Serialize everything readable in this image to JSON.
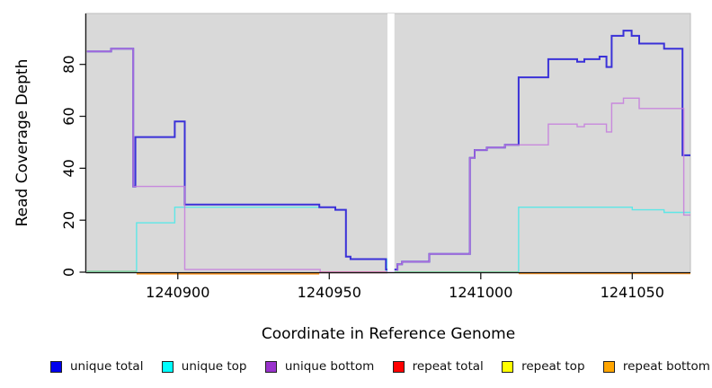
{
  "figure": {
    "background": "#ffffff",
    "panel_background": "#d9d9d9",
    "panel_border": "#bdbdbd",
    "axis_color": "#1a1a1a"
  },
  "chart_data": {
    "type": "line",
    "style": "step-after",
    "title": "",
    "xlabel": "Coordinate in Reference Genome",
    "ylabel": "Read Coverage Depth",
    "xlim": [
      1240869.8,
      1241069.2
    ],
    "ylim": [
      0,
      99.6
    ],
    "grid": "off",
    "legend_position": "bottom",
    "xticks": [
      {
        "value": 1240900,
        "label": "1240900"
      },
      {
        "value": 1240950,
        "label": "1240950"
      },
      {
        "value": 1241000,
        "label": "1241000"
      },
      {
        "value": 1241050,
        "label": "1241050"
      }
    ],
    "yticks": [
      {
        "value": 0,
        "label": "0"
      },
      {
        "value": 20,
        "label": "20"
      },
      {
        "value": 40,
        "label": "40"
      },
      {
        "value": 60,
        "label": "60"
      },
      {
        "value": 80,
        "label": "80"
      }
    ],
    "gap_band": {
      "x0": 1240969.2,
      "x1": 1240971.5,
      "color": "#ffffff",
      "note": "white vertical band with no data"
    },
    "series": [
      {
        "name": "unique top",
        "color": "#5ee7e7",
        "width": 1.4,
        "opacity": 1,
        "draw": true,
        "points": [
          [
            1240870,
            0
          ],
          [
            1240886.4,
            19
          ],
          [
            1240899,
            25
          ],
          [
            1240952,
            24
          ],
          [
            1240955.5,
            6
          ],
          [
            1240957,
            5
          ],
          [
            1240969,
            0
          ],
          [
            1241012.5,
            25
          ],
          [
            1241050,
            24
          ],
          [
            1241060.5,
            23
          ]
        ]
      },
      {
        "name": "unique total",
        "color": "#3a31d8",
        "width": 2,
        "opacity": 1,
        "draw": true,
        "points": [
          [
            1240870,
            85
          ],
          [
            1240878,
            86
          ],
          [
            1240885.3,
            33
          ],
          [
            1240886,
            52
          ],
          [
            1240899,
            58
          ],
          [
            1240902.3,
            26
          ],
          [
            1240946.7,
            25
          ],
          [
            1240952,
            24
          ],
          [
            1240955.5,
            6
          ],
          [
            1240957,
            5
          ],
          [
            1240968.7,
            1
          ],
          [
            1240972.5,
            3
          ],
          [
            1240974,
            4
          ],
          [
            1240983,
            7
          ],
          [
            1240996.4,
            44
          ],
          [
            1240998,
            47
          ],
          [
            1241002,
            48
          ],
          [
            1241008,
            49
          ],
          [
            1241012.5,
            75
          ],
          [
            1241022.3,
            82
          ],
          [
            1241031.8,
            81
          ],
          [
            1241034.2,
            82
          ],
          [
            1241039.2,
            83
          ],
          [
            1241041.5,
            79
          ],
          [
            1241043.2,
            91
          ],
          [
            1241047.1,
            93
          ],
          [
            1241049.8,
            91
          ],
          [
            1241052.3,
            88
          ],
          [
            1241060.5,
            86
          ],
          [
            1241066.6,
            45
          ]
        ]
      },
      {
        "name": "unique bottom",
        "color": "#c47add",
        "width": 1.4,
        "opacity": 0.85,
        "draw": true,
        "points": [
          [
            1240870,
            85
          ],
          [
            1240878,
            86
          ],
          [
            1240885.3,
            33
          ],
          [
            1240902.3,
            1
          ],
          [
            1240947,
            0
          ],
          [
            1240972.5,
            3
          ],
          [
            1240974,
            4
          ],
          [
            1240983,
            7
          ],
          [
            1240996.4,
            44
          ],
          [
            1240998,
            47
          ],
          [
            1241002,
            48
          ],
          [
            1241008,
            49
          ],
          [
            1241022.3,
            57
          ],
          [
            1241031.8,
            56
          ],
          [
            1241034.2,
            57
          ],
          [
            1241041.5,
            54
          ],
          [
            1241043.2,
            65
          ],
          [
            1241047.1,
            67
          ],
          [
            1241052.3,
            63
          ],
          [
            1241067,
            22
          ]
        ]
      },
      {
        "name": "repeat total",
        "color": "#cc3366",
        "width": 1.6,
        "opacity": 1,
        "draw": false,
        "points": [
          [
            1240870,
            0
          ]
        ]
      },
      {
        "name": "repeat top",
        "color": "#f5f500",
        "width": 1.4,
        "opacity": 1,
        "draw": false,
        "points": [
          [
            1240870,
            0
          ]
        ]
      },
      {
        "name": "repeat bottom",
        "color": "#ff9015",
        "width": 2,
        "opacity": 1,
        "draw": false,
        "points": [
          [
            1240870,
            0
          ]
        ]
      }
    ],
    "zero_line_segments": [
      {
        "x0": 1240870,
        "x1": 1240886.4,
        "color": "#7fcb9c",
        "dy": -0.8,
        "width": 1.6
      },
      {
        "x0": 1240886.4,
        "x1": 1240946.7,
        "color": "#ff9015",
        "dy": 1.6,
        "width": 2
      },
      {
        "x0": 1240946.7,
        "x1": 1240969.2,
        "color": "#cc3366",
        "dy": 0.4,
        "width": 1.6
      },
      {
        "x0": 1240971.5,
        "x1": 1241012.5,
        "color": "#7fcb9c",
        "dy": -0.2,
        "width": 1.6
      },
      {
        "x0": 1241012.5,
        "x1": 1241069.2,
        "color": "#ff9015",
        "dy": 1.2,
        "width": 2
      }
    ]
  },
  "legend": {
    "items": [
      {
        "label": "unique total",
        "color": "#0000ee"
      },
      {
        "label": "unique top",
        "color": "#00ffff"
      },
      {
        "label": "unique bottom",
        "color": "#9932cc"
      },
      {
        "label": "repeat total",
        "color": "#ff0000"
      },
      {
        "label": "repeat top",
        "color": "#ffff00"
      },
      {
        "label": "repeat bottom",
        "color": "#ffa500"
      }
    ]
  }
}
